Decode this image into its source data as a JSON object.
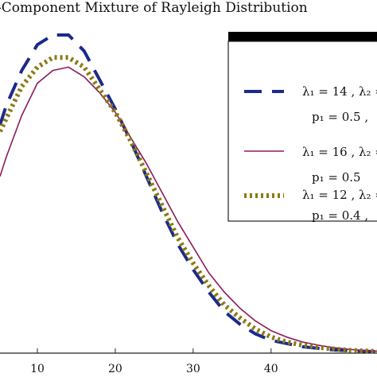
{
  "chart_data": {
    "type": "line",
    "title": "-Component  Mixture  of  Rayleigh  Distribution",
    "xlabel": "",
    "ylabel": "",
    "xlim": [
      5.2,
      53.6
    ],
    "ylim": [
      0,
      1
    ],
    "x_ticks": [
      10,
      20,
      30,
      40
    ],
    "x_tick_labels": [
      "10",
      "20",
      "30",
      "40"
    ],
    "grid": false,
    "legend_position": "top-right",
    "series": [
      {
        "line1": "λ₁ = 14 , λ₂ =",
        "line2": "p₁ = 0.5 ,",
        "color": "#1c2a8c",
        "style": "dashed",
        "x": [
          5.2,
          6,
          8,
          10,
          12,
          14,
          16,
          18,
          20,
          22,
          24,
          26,
          28,
          30,
          32,
          34,
          36,
          38,
          40,
          42,
          44,
          46,
          48,
          50,
          52,
          53.6
        ],
        "y": [
          0.71,
          0.77,
          0.88,
          0.96,
          0.99,
          0.99,
          0.94,
          0.85,
          0.76,
          0.66,
          0.55,
          0.44,
          0.34,
          0.26,
          0.19,
          0.13,
          0.09,
          0.06,
          0.04,
          0.03,
          0.02,
          0.015,
          0.01,
          0.008,
          0.006,
          0.005
        ]
      },
      {
        "line1": "λ₁ = 16 , λ₂ =",
        "line2": "p₁ = 0.5",
        "color": "#8b1a5a",
        "style": "solid",
        "x": [
          5.2,
          6,
          8,
          10,
          12,
          14,
          16,
          18,
          20,
          22,
          24,
          26,
          28,
          30,
          32,
          34,
          36,
          38,
          40,
          42,
          44,
          46,
          48,
          50,
          52,
          53.6
        ],
        "y": [
          0.55,
          0.61,
          0.74,
          0.84,
          0.88,
          0.89,
          0.86,
          0.81,
          0.75,
          0.67,
          0.59,
          0.5,
          0.41,
          0.33,
          0.25,
          0.19,
          0.14,
          0.1,
          0.07,
          0.05,
          0.035,
          0.025,
          0.017,
          0.012,
          0.008,
          0.006
        ]
      },
      {
        "line1": "λ₁ = 12 , λ₂ =",
        "line2": "p₁ = 0.4 ,",
        "color": "#8a7a12",
        "style": "dotted",
        "x": [
          5.2,
          6,
          8,
          10,
          12,
          14,
          16,
          18,
          20,
          22,
          24,
          26,
          28,
          30,
          32,
          34,
          36,
          38,
          40,
          42,
          44,
          46,
          48,
          50,
          52,
          53.6
        ],
        "y": [
          0.69,
          0.73,
          0.83,
          0.89,
          0.92,
          0.92,
          0.89,
          0.82,
          0.75,
          0.66,
          0.56,
          0.46,
          0.36,
          0.28,
          0.21,
          0.15,
          0.11,
          0.075,
          0.05,
          0.035,
          0.025,
          0.018,
          0.013,
          0.009,
          0.007,
          0.005
        ]
      }
    ]
  }
}
